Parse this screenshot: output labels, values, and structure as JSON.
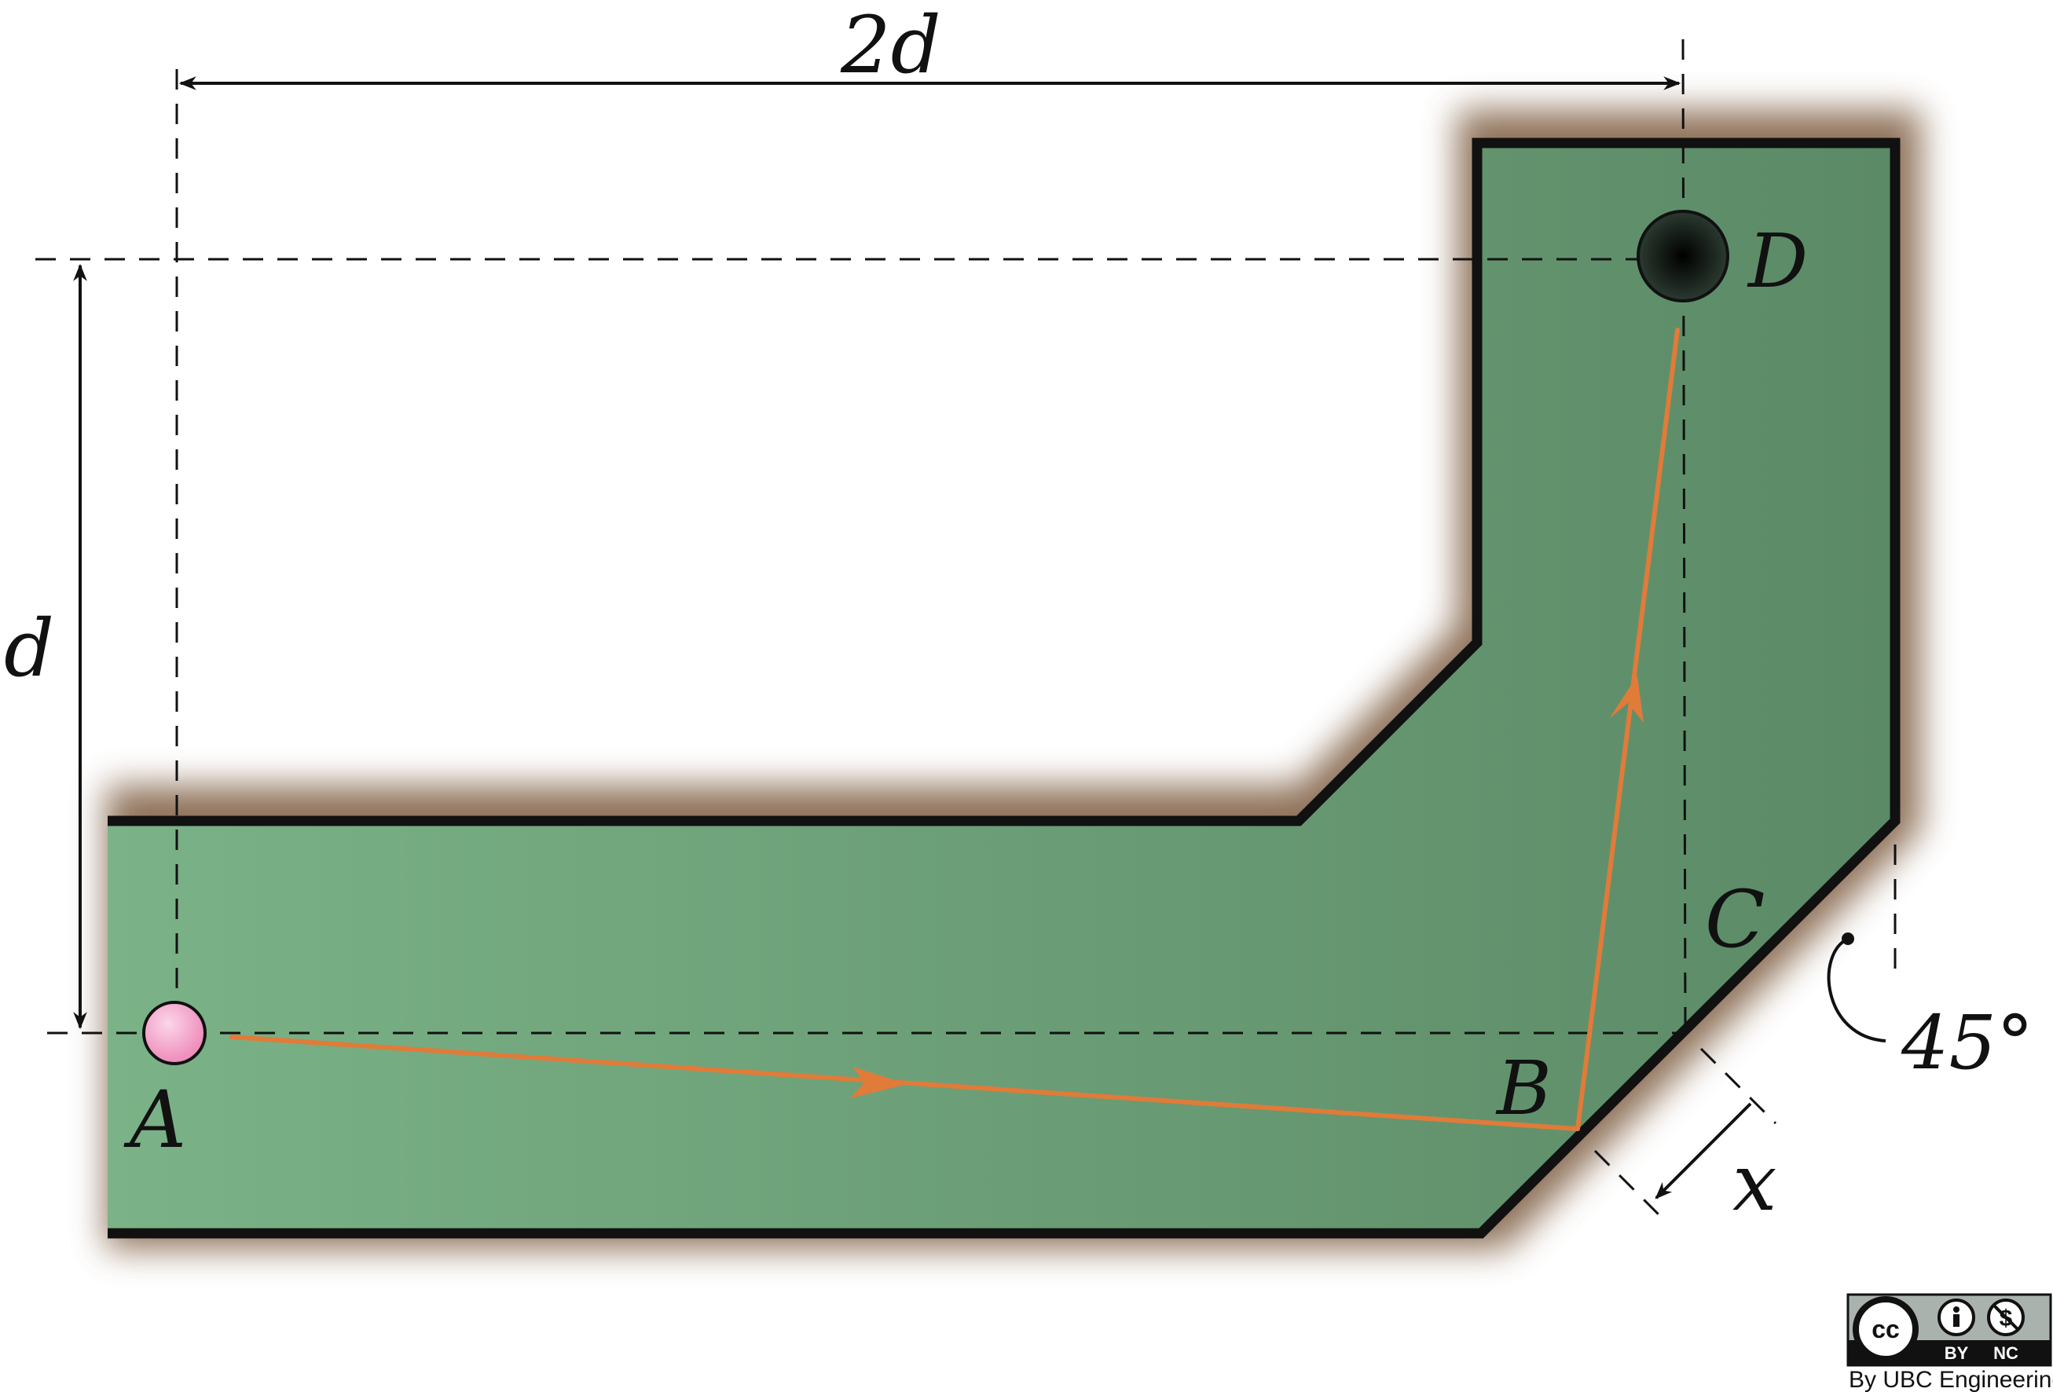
{
  "labels": {
    "point_a": "A",
    "point_b": "B",
    "point_c": "C",
    "point_d": "D",
    "width_dimension": "2d",
    "height_dimension": "d",
    "offset_dimension": "x",
    "angle": "45°"
  },
  "license": {
    "cc": "cc",
    "by": "BY",
    "nc": "NC",
    "credit": "By UBC Engineering"
  },
  "colors": {
    "surface_light": "#7bb287",
    "surface_dark": "#5b8a66",
    "wall_shadow": "#7b5a3c",
    "wall": "#111111",
    "path": "#e07b39",
    "ball": "#f29cc4",
    "hole": "#0d0d0d"
  }
}
